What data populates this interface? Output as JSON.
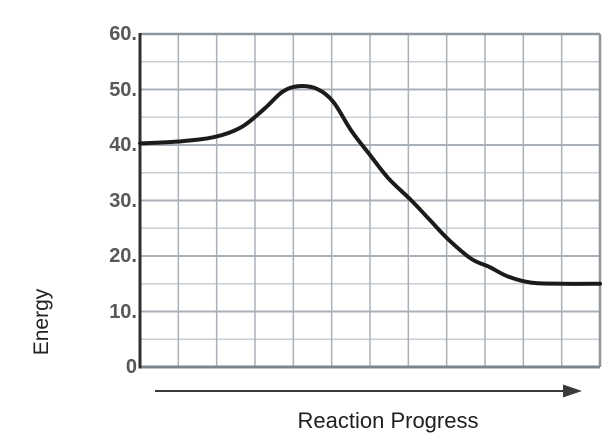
{
  "chart_data": {
    "type": "line",
    "title": "",
    "xlabel": "Reaction Progress",
    "ylabel": "Energy",
    "ylim": [
      0,
      60
    ],
    "xlim_style": "unlabeled-progress-axis-with-arrow",
    "grid": {
      "visible": true,
      "x_divisions": 12,
      "y_minor_step": 5,
      "y_major_step": 10
    },
    "legend": "none",
    "y_ticks": [
      {
        "value": 60,
        "label": "60."
      },
      {
        "value": 50,
        "label": "50."
      },
      {
        "value": 40,
        "label": "40."
      },
      {
        "value": 30,
        "label": "30."
      },
      {
        "value": 20,
        "label": "20."
      },
      {
        "value": 10,
        "label": "10."
      },
      {
        "value": 0,
        "label": "0"
      }
    ],
    "series": [
      {
        "name": "reaction-energy-curve",
        "points_x_fraction_energy": [
          [
            0.0,
            40.3
          ],
          [
            0.08,
            40.6
          ],
          [
            0.16,
            41.4
          ],
          [
            0.22,
            43.2
          ],
          [
            0.27,
            46.5
          ],
          [
            0.31,
            49.6
          ],
          [
            0.345,
            50.6
          ],
          [
            0.385,
            50.1
          ],
          [
            0.42,
            47.8
          ],
          [
            0.46,
            42.5
          ],
          [
            0.5,
            38.2
          ],
          [
            0.54,
            34.0
          ],
          [
            0.59,
            30.0
          ],
          [
            0.63,
            26.5
          ],
          [
            0.67,
            23.0
          ],
          [
            0.72,
            19.5
          ],
          [
            0.76,
            18.0
          ],
          [
            0.8,
            16.3
          ],
          [
            0.85,
            15.2
          ],
          [
            0.92,
            15.0
          ],
          [
            1.0,
            15.0
          ]
        ]
      }
    ],
    "key_values": {
      "reactant_energy": 40,
      "peak_energy": 50.5,
      "product_energy": 15
    }
  },
  "colors": {
    "background": "#ffffff",
    "curve": "#1b1b1b",
    "grid_minor": "#c9ced3",
    "grid_major": "#a9b0b7",
    "plot_border": "#8e959c",
    "plot_border_bottom": "#7d848b",
    "left_axis": "#2f2f2f",
    "tick_text": "#585858",
    "axis_title_text": "#222222",
    "arrow": "#3a3a3a"
  }
}
